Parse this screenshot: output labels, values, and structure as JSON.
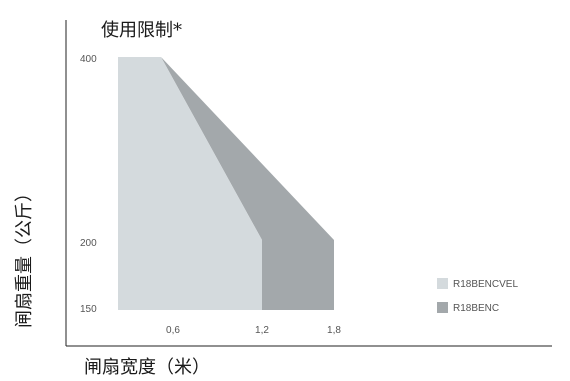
{
  "chart_data": {
    "type": "area",
    "title": "使用限制*",
    "xlabel": "闸扇宽度（米）",
    "ylabel": "闸扇重量（公斤）",
    "x_ticks": [
      "0,6",
      "1,2",
      "1,8"
    ],
    "y_ticks": [
      "400",
      "200",
      "150"
    ],
    "series": [
      {
        "name": "R18BENCVEL",
        "color": "#d4dadd",
        "points": [
          [
            0,
            400
          ],
          [
            0.6,
            400
          ],
          [
            1.2,
            200
          ],
          [
            1.2,
            150
          ],
          [
            0,
            150
          ]
        ]
      },
      {
        "name": "R18BENC",
        "color": "#a3a8ab",
        "points": [
          [
            0.6,
            400
          ],
          [
            1.8,
            200
          ],
          [
            1.8,
            150
          ],
          [
            1.2,
            150
          ],
          [
            1.2,
            200
          ]
        ]
      }
    ]
  }
}
